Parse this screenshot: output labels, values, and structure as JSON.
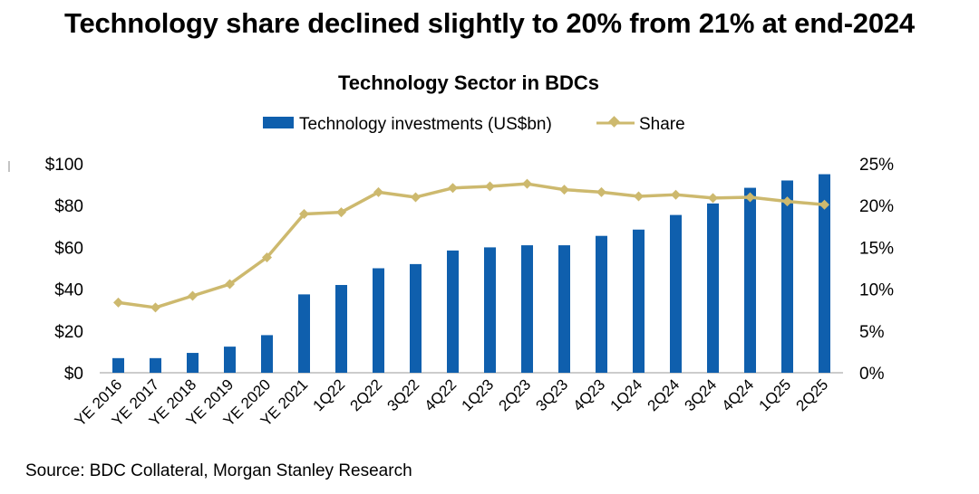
{
  "headline": "Technology share declined slightly to 20% from 21% at end-2024",
  "source": "Source: BDC Collateral, Morgan Stanley Research",
  "colors": {
    "bars": "#0f5fad",
    "line": "#cdb96e"
  },
  "chart_data": {
    "type": "bar",
    "title": "Technology Sector in BDCs",
    "legend_position": "top-center",
    "grid": false,
    "categories": [
      "YE 2016",
      "YE 2017",
      "YE 2018",
      "YE 2019",
      "YE 2020",
      "YE 2021",
      "1Q22",
      "2Q22",
      "3Q22",
      "4Q22",
      "1Q23",
      "2Q23",
      "3Q23",
      "4Q23",
      "1Q24",
      "2Q24",
      "3Q24",
      "4Q24",
      "1Q25",
      "2Q25"
    ],
    "series": [
      {
        "name": "Technology investments (US$bn)",
        "type": "bar",
        "axis": "left",
        "values": [
          7,
          7,
          9.5,
          12.5,
          18,
          37.5,
          42,
          50,
          52,
          58.5,
          60,
          61,
          61,
          65.5,
          68.5,
          75.5,
          81,
          88.5,
          92,
          95
        ]
      },
      {
        "name": "Share",
        "type": "line",
        "axis": "right",
        "values": [
          8.4,
          7.8,
          9.2,
          10.6,
          13.8,
          19.0,
          19.2,
          21.6,
          21.0,
          22.1,
          22.3,
          22.6,
          21.9,
          21.6,
          21.1,
          21.3,
          20.9,
          21.0,
          20.5,
          20.1
        ]
      }
    ],
    "y_left": {
      "ylim": [
        0,
        100
      ],
      "ticks": [
        0,
        20,
        40,
        60,
        80,
        100
      ],
      "tick_labels": [
        "$0",
        "$20",
        "$40",
        "$60",
        "$80",
        "$100"
      ]
    },
    "y_right": {
      "ylim": [
        0,
        25
      ],
      "ticks": [
        0,
        5,
        10,
        15,
        20,
        25
      ],
      "tick_labels": [
        "0%",
        "5%",
        "10%",
        "15%",
        "20%",
        "25%"
      ]
    }
  }
}
